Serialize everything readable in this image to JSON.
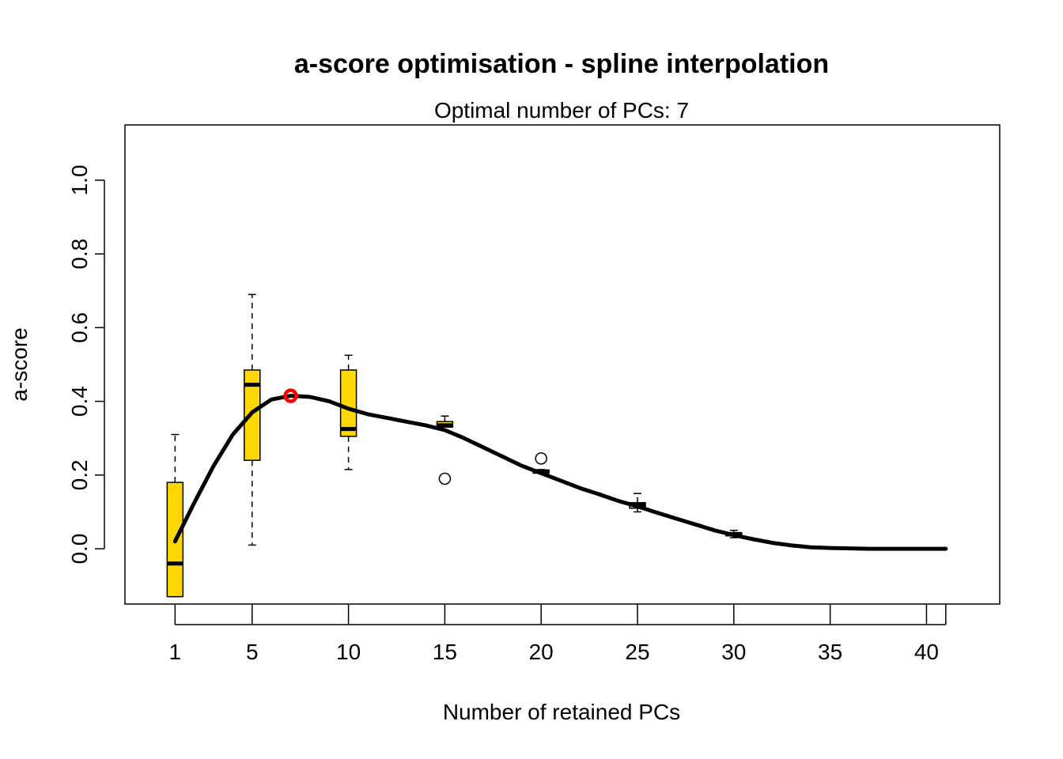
{
  "chart_data": {
    "type": "box",
    "title": "a-score optimisation - spline interpolation",
    "subtitle": "Optimal number of PCs: 7",
    "xlabel": "Number of retained PCs",
    "ylabel": "a-score",
    "xlim": [
      -1.6,
      43.8
    ],
    "ylim": [
      -0.15,
      1.15
    ],
    "x_ticks": [
      1,
      5,
      10,
      15,
      20,
      25,
      30,
      35,
      40,
      41
    ],
    "x_tick_labels": [
      "1",
      "5",
      "10",
      "15",
      "20",
      "25",
      "30",
      "35",
      "40",
      ""
    ],
    "y_ticks": [
      0.0,
      0.2,
      0.4,
      0.6,
      0.8,
      1.0
    ],
    "y_tick_labels": [
      "0.0",
      "0.2",
      "0.4",
      "0.6",
      "0.8",
      "1.0"
    ],
    "box_color": "#FFD700",
    "line_color": "#000000",
    "optimum_color": "#FF0000",
    "boxes": [
      {
        "x": 1,
        "whisker_low": -0.13,
        "q1": -0.13,
        "median": -0.04,
        "q3": 0.18,
        "whisker_high": 0.31
      },
      {
        "x": 5,
        "whisker_low": 0.01,
        "q1": 0.24,
        "median": 0.445,
        "q3": 0.485,
        "whisker_high": 0.69
      },
      {
        "x": 10,
        "whisker_low": 0.215,
        "q1": 0.305,
        "median": 0.325,
        "q3": 0.485,
        "whisker_high": 0.525
      },
      {
        "x": 15,
        "whisker_low": 0.33,
        "q1": 0.33,
        "median": 0.335,
        "q3": 0.345,
        "whisker_high": 0.36
      },
      {
        "x": 20,
        "whisker_low": 0.205,
        "q1": 0.205,
        "median": 0.21,
        "q3": 0.213,
        "whisker_high": 0.215
      },
      {
        "x": 25,
        "whisker_low": 0.1,
        "q1": 0.11,
        "median": 0.12,
        "q3": 0.125,
        "whisker_high": 0.15
      },
      {
        "x": 30,
        "whisker_low": 0.03,
        "q1": 0.035,
        "median": 0.04,
        "q3": 0.043,
        "whisker_high": 0.05
      }
    ],
    "outliers": [
      {
        "x": 15,
        "y": 0.19
      },
      {
        "x": 20,
        "y": 0.245
      }
    ],
    "spline": {
      "x": [
        1,
        2,
        3,
        4,
        5,
        6,
        7,
        8,
        9,
        10,
        11,
        12,
        13,
        14,
        15,
        16,
        17,
        18,
        19,
        20,
        21,
        22,
        23,
        24,
        25,
        26,
        27,
        28,
        29,
        30,
        31,
        32,
        33,
        34,
        35,
        36,
        37,
        38,
        39,
        40,
        41
      ],
      "y": [
        0.02,
        0.125,
        0.225,
        0.31,
        0.37,
        0.405,
        0.415,
        0.412,
        0.4,
        0.38,
        0.365,
        0.355,
        0.345,
        0.335,
        0.322,
        0.3,
        0.275,
        0.25,
        0.225,
        0.205,
        0.185,
        0.165,
        0.148,
        0.13,
        0.115,
        0.098,
        0.082,
        0.066,
        0.05,
        0.037,
        0.026,
        0.016,
        0.009,
        0.004,
        0.002,
        0.001,
        0.0,
        0.0,
        0.0,
        0.0,
        0.0
      ]
    },
    "optimum": {
      "x": 7,
      "y": 0.415
    }
  }
}
